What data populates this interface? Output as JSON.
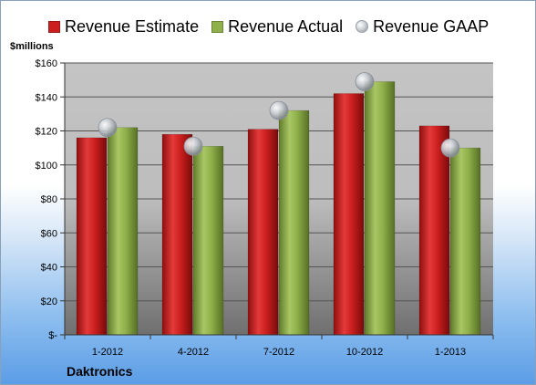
{
  "chart_data": {
    "type": "bar",
    "categories": [
      "1-2012",
      "4-2012",
      "7-2012",
      "10-2012",
      "1-2013"
    ],
    "series": [
      {
        "name": "Revenue Estimate",
        "values": [
          116,
          118,
          121,
          142,
          123
        ],
        "color": "#cc1f1f"
      },
      {
        "name": "Revenue Actual",
        "values": [
          122,
          111,
          132,
          149,
          110
        ],
        "color": "#8fb04a"
      },
      {
        "name": "Revenue GAAP",
        "values": [
          122,
          111,
          132,
          149,
          110
        ],
        "color": "#b8bcc2",
        "marker": "sphere"
      }
    ],
    "ylabel": "$millions",
    "ylim": [
      0,
      160
    ],
    "yticks": [
      0,
      20,
      40,
      60,
      80,
      100,
      120,
      140,
      160
    ],
    "ytick_labels": [
      "$-",
      "$20",
      "$40",
      "$60",
      "$80",
      "$100",
      "$120",
      "$140",
      "$160"
    ],
    "grid": true,
    "legend": "top"
  },
  "footer": {
    "company": "Daktronics"
  }
}
